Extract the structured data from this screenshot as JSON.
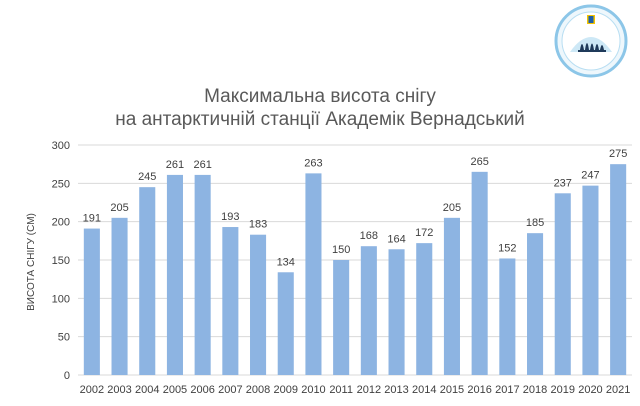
{
  "chart_data": {
    "type": "bar",
    "title": [
      "Максимальна висота снігу",
      "на антарктичній станції Академік Вернадський"
    ],
    "xlabel": "",
    "ylabel": "ВИСОТА СНІГУ (СМ)",
    "ylim": [
      0,
      300
    ],
    "yticks": [
      0,
      50,
      100,
      150,
      200,
      250,
      300
    ],
    "grid": true,
    "categories": [
      "2002",
      "2003",
      "2004",
      "2005",
      "2006",
      "2007",
      "2008",
      "2009",
      "2010",
      "2011",
      "2012",
      "2013",
      "2014",
      "2015",
      "2016",
      "2017",
      "2018",
      "2019",
      "2020",
      "2021"
    ],
    "values": [
      191,
      205,
      245,
      261,
      261,
      193,
      183,
      134,
      263,
      150,
      168,
      164,
      172,
      205,
      265,
      152,
      185,
      237,
      247,
      275
    ],
    "data_labels": true
  },
  "colors": {
    "bar": "#8db4e2",
    "grid": "#d9d9d9",
    "axis_text": "#404040",
    "label_text": "#404040",
    "logo_ring": "#8cc6e8"
  },
  "logo": {
    "icon": "ukrainian-antarctic-center-logo"
  }
}
